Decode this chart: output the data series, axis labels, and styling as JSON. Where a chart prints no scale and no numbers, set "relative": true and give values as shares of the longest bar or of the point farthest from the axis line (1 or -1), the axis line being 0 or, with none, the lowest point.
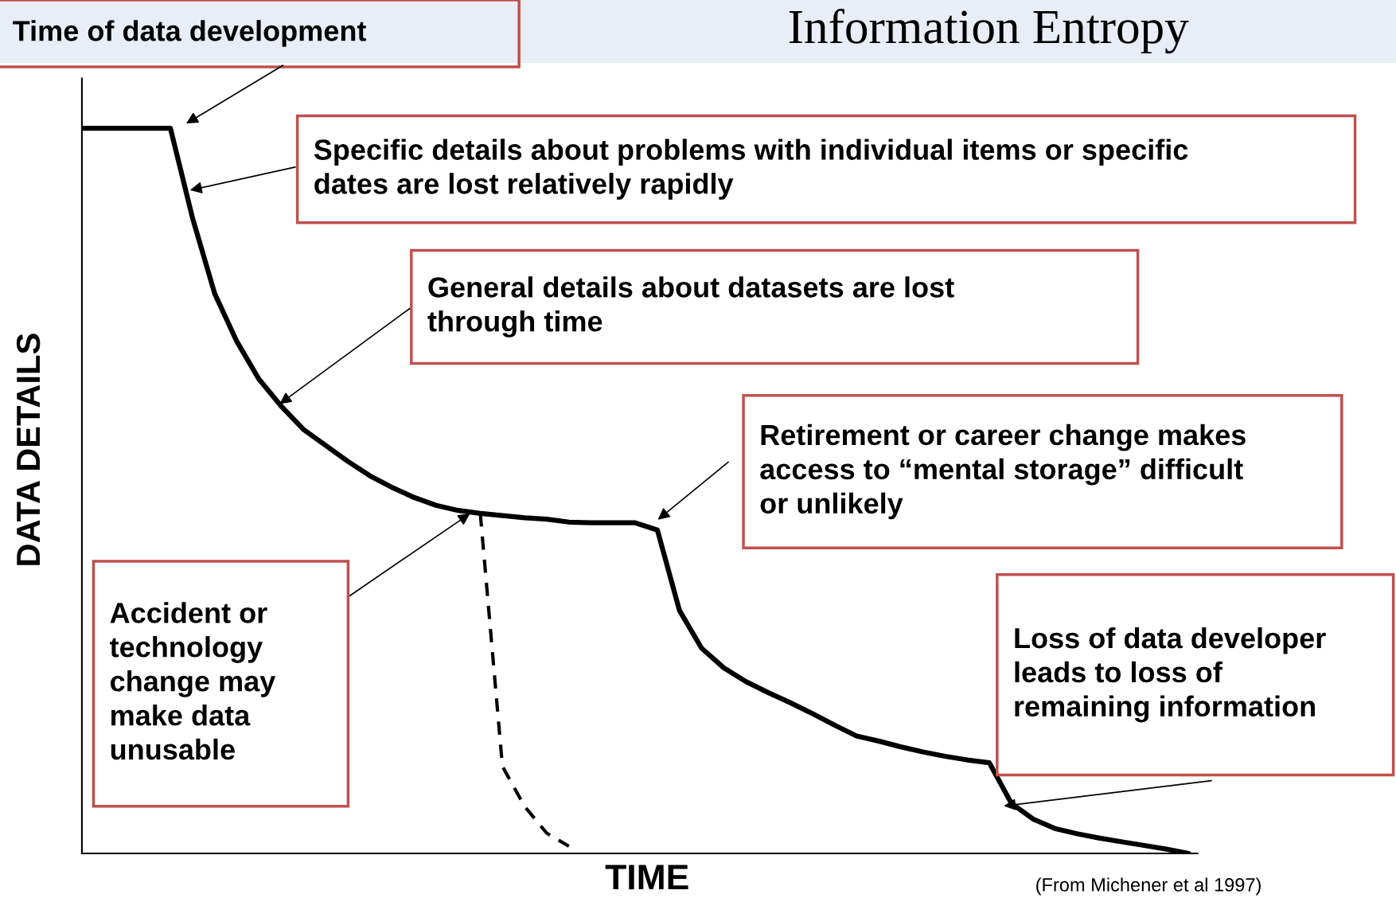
{
  "chart_data": {
    "type": "line",
    "title": "Information Entropy",
    "xlabel": "TIME",
    "ylabel": "DATA DETAILS",
    "relative": true,
    "grid": false,
    "marker": "none",
    "categories": [
      null,
      null,
      null,
      null,
      null,
      null,
      null,
      null,
      null,
      null,
      null,
      null,
      null,
      null,
      null,
      null,
      null,
      null,
      null,
      null,
      null,
      null,
      null,
      null,
      null,
      null,
      null,
      null,
      null,
      null,
      null,
      null,
      null,
      null,
      null,
      null,
      null,
      null,
      null,
      null,
      null,
      null,
      null,
      null,
      null,
      null,
      null,
      null,
      null,
      null,
      null
    ],
    "series": [
      {
        "color": "#000000",
        "line_style": "solid",
        "values": [
          1.0,
          1.0,
          1.0,
          1.0,
          1.0,
          0.876,
          0.772,
          0.706,
          0.654,
          0.617,
          0.585,
          0.563,
          0.541,
          0.521,
          0.505,
          0.491,
          0.48,
          0.473,
          0.469,
          0.466,
          0.463,
          0.461,
          0.457,
          0.456,
          0.456,
          0.456,
          0.446,
          0.335,
          0.283,
          0.256,
          0.237,
          0.222,
          0.208,
          0.193,
          0.177,
          0.162,
          0.155,
          0.147,
          0.14,
          0.134,
          0.129,
          0.125,
          0.069,
          0.047,
          0.034,
          0.027,
          0.021,
          0.016,
          0.011,
          0.006,
          0.0
        ]
      },
      {
        "color": "#000000",
        "line_style": "dashed",
        "values": [
          null,
          null,
          null,
          null,
          null,
          null,
          null,
          null,
          null,
          null,
          null,
          null,
          null,
          null,
          null,
          null,
          null,
          null,
          0.469,
          0.12,
          0.065,
          0.028,
          0.01,
          null,
          null,
          null,
          null,
          null,
          null,
          null,
          null,
          null,
          null,
          null,
          null,
          null,
          null,
          null,
          null,
          null,
          null,
          null,
          null,
          null,
          null,
          null,
          null,
          null,
          null,
          null,
          null
        ]
      }
    ],
    "annotations": [
      "Time of data development",
      "Specific details about problems with individual items or specific\ndates are lost relatively rapidly",
      "General details about datasets are lost\nthrough time",
      "Retirement or career change makes\naccess to “mental storage” difficult\nor unlikely",
      "Accident or\ntechnology\nchange may\nmake data\nunusable",
      "Loss of data developer\nleads to loss of\nremaining information",
      "(From Michener et al 1997)"
    ]
  }
}
